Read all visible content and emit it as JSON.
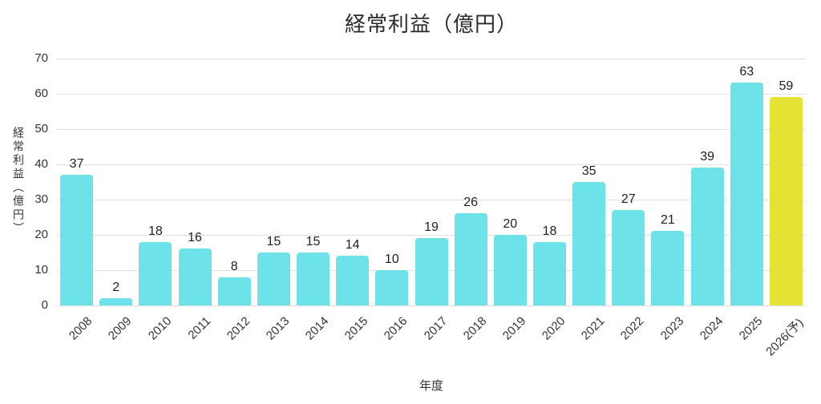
{
  "title": "経常利益（億円）",
  "chart_data": {
    "type": "bar",
    "title": "経常利益（億円）",
    "xlabel": "年度",
    "ylabel": "経常利益（億円）",
    "categories": [
      "2008",
      "2009",
      "2010",
      "2011",
      "2012",
      "2013",
      "2014",
      "2015",
      "2016",
      "2017",
      "2018",
      "2019",
      "2020",
      "2021",
      "2022",
      "2023",
      "2024",
      "2025",
      "2026(予)"
    ],
    "values": [
      37,
      2,
      18,
      16,
      8,
      15,
      15,
      14,
      10,
      19,
      26,
      20,
      18,
      35,
      27,
      21,
      39,
      63,
      59
    ],
    "ylim": [
      0,
      70
    ],
    "ytick_step": 10,
    "grid": true,
    "legend": "none",
    "bar_color": "#6de2e8",
    "highlight_color": "#e5e235",
    "highlight_index": 18,
    "gridline_color": "#e0e0e0",
    "label_color": "#1f1f1f",
    "tick_color": "#333333"
  }
}
